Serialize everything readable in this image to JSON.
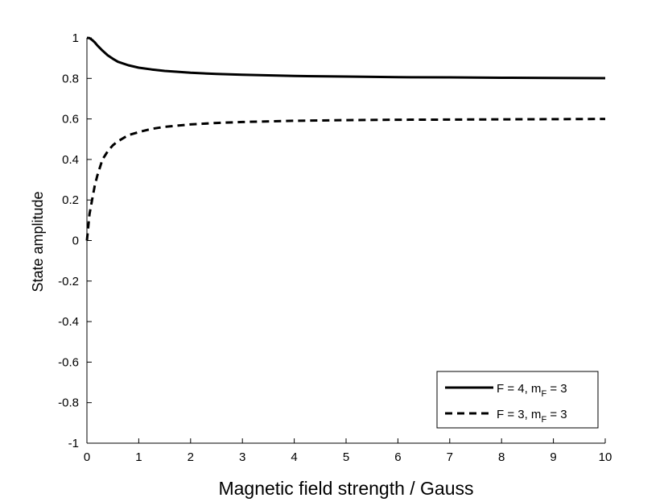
{
  "chart_data": {
    "type": "line",
    "xlabel": "Magnetic field strength / Gauss",
    "ylabel": "State amplitude",
    "xlim": [
      0,
      10
    ],
    "ylim": [
      -1,
      1
    ],
    "xticks": [
      0,
      1,
      2,
      3,
      4,
      5,
      6,
      7,
      8,
      9,
      10
    ],
    "xtick_labels": [
      "0",
      "1",
      "2",
      "3",
      "4",
      "5",
      "6",
      "7",
      "8",
      "9",
      "10"
    ],
    "yticks": [
      -1,
      -0.8,
      -0.6,
      -0.4,
      -0.2,
      0,
      0.2,
      0.4,
      0.6,
      0.8,
      1
    ],
    "ytick_labels": [
      "-1",
      "-0.8",
      "-0.6",
      "-0.4",
      "-0.2",
      "0",
      "0.2",
      "0.4",
      "0.6",
      "0.8",
      "1"
    ],
    "grid": false,
    "legend_position": "bottom-right",
    "line_color": "#000000",
    "x": [
      0,
      0.05,
      0.1,
      0.15,
      0.2,
      0.3,
      0.4,
      0.5,
      0.6,
      0.8,
      1,
      1.25,
      1.5,
      2,
      2.5,
      3,
      4,
      5,
      6,
      7,
      8,
      9,
      10
    ],
    "series": [
      {
        "legend_main": "F = 4, m",
        "legend_sub": "F",
        "legend_tail": " = 3",
        "style": "solid",
        "values": [
          1.0,
          0.999,
          0.99,
          0.978,
          0.963,
          0.937,
          0.914,
          0.897,
          0.882,
          0.865,
          0.853,
          0.844,
          0.837,
          0.828,
          0.822,
          0.818,
          0.812,
          0.809,
          0.806,
          0.805,
          0.803,
          0.802,
          0.801
        ]
      },
      {
        "legend_main": "F = 3, m",
        "legend_sub": "F",
        "legend_tail": " = 3",
        "style": "dashed",
        "values": [
          0.0,
          0.13,
          0.2,
          0.27,
          0.32,
          0.4,
          0.44,
          0.47,
          0.49,
          0.52,
          0.535,
          0.551,
          0.561,
          0.573,
          0.58,
          0.585,
          0.591,
          0.594,
          0.596,
          0.597,
          0.598,
          0.599,
          0.6
        ]
      }
    ]
  }
}
